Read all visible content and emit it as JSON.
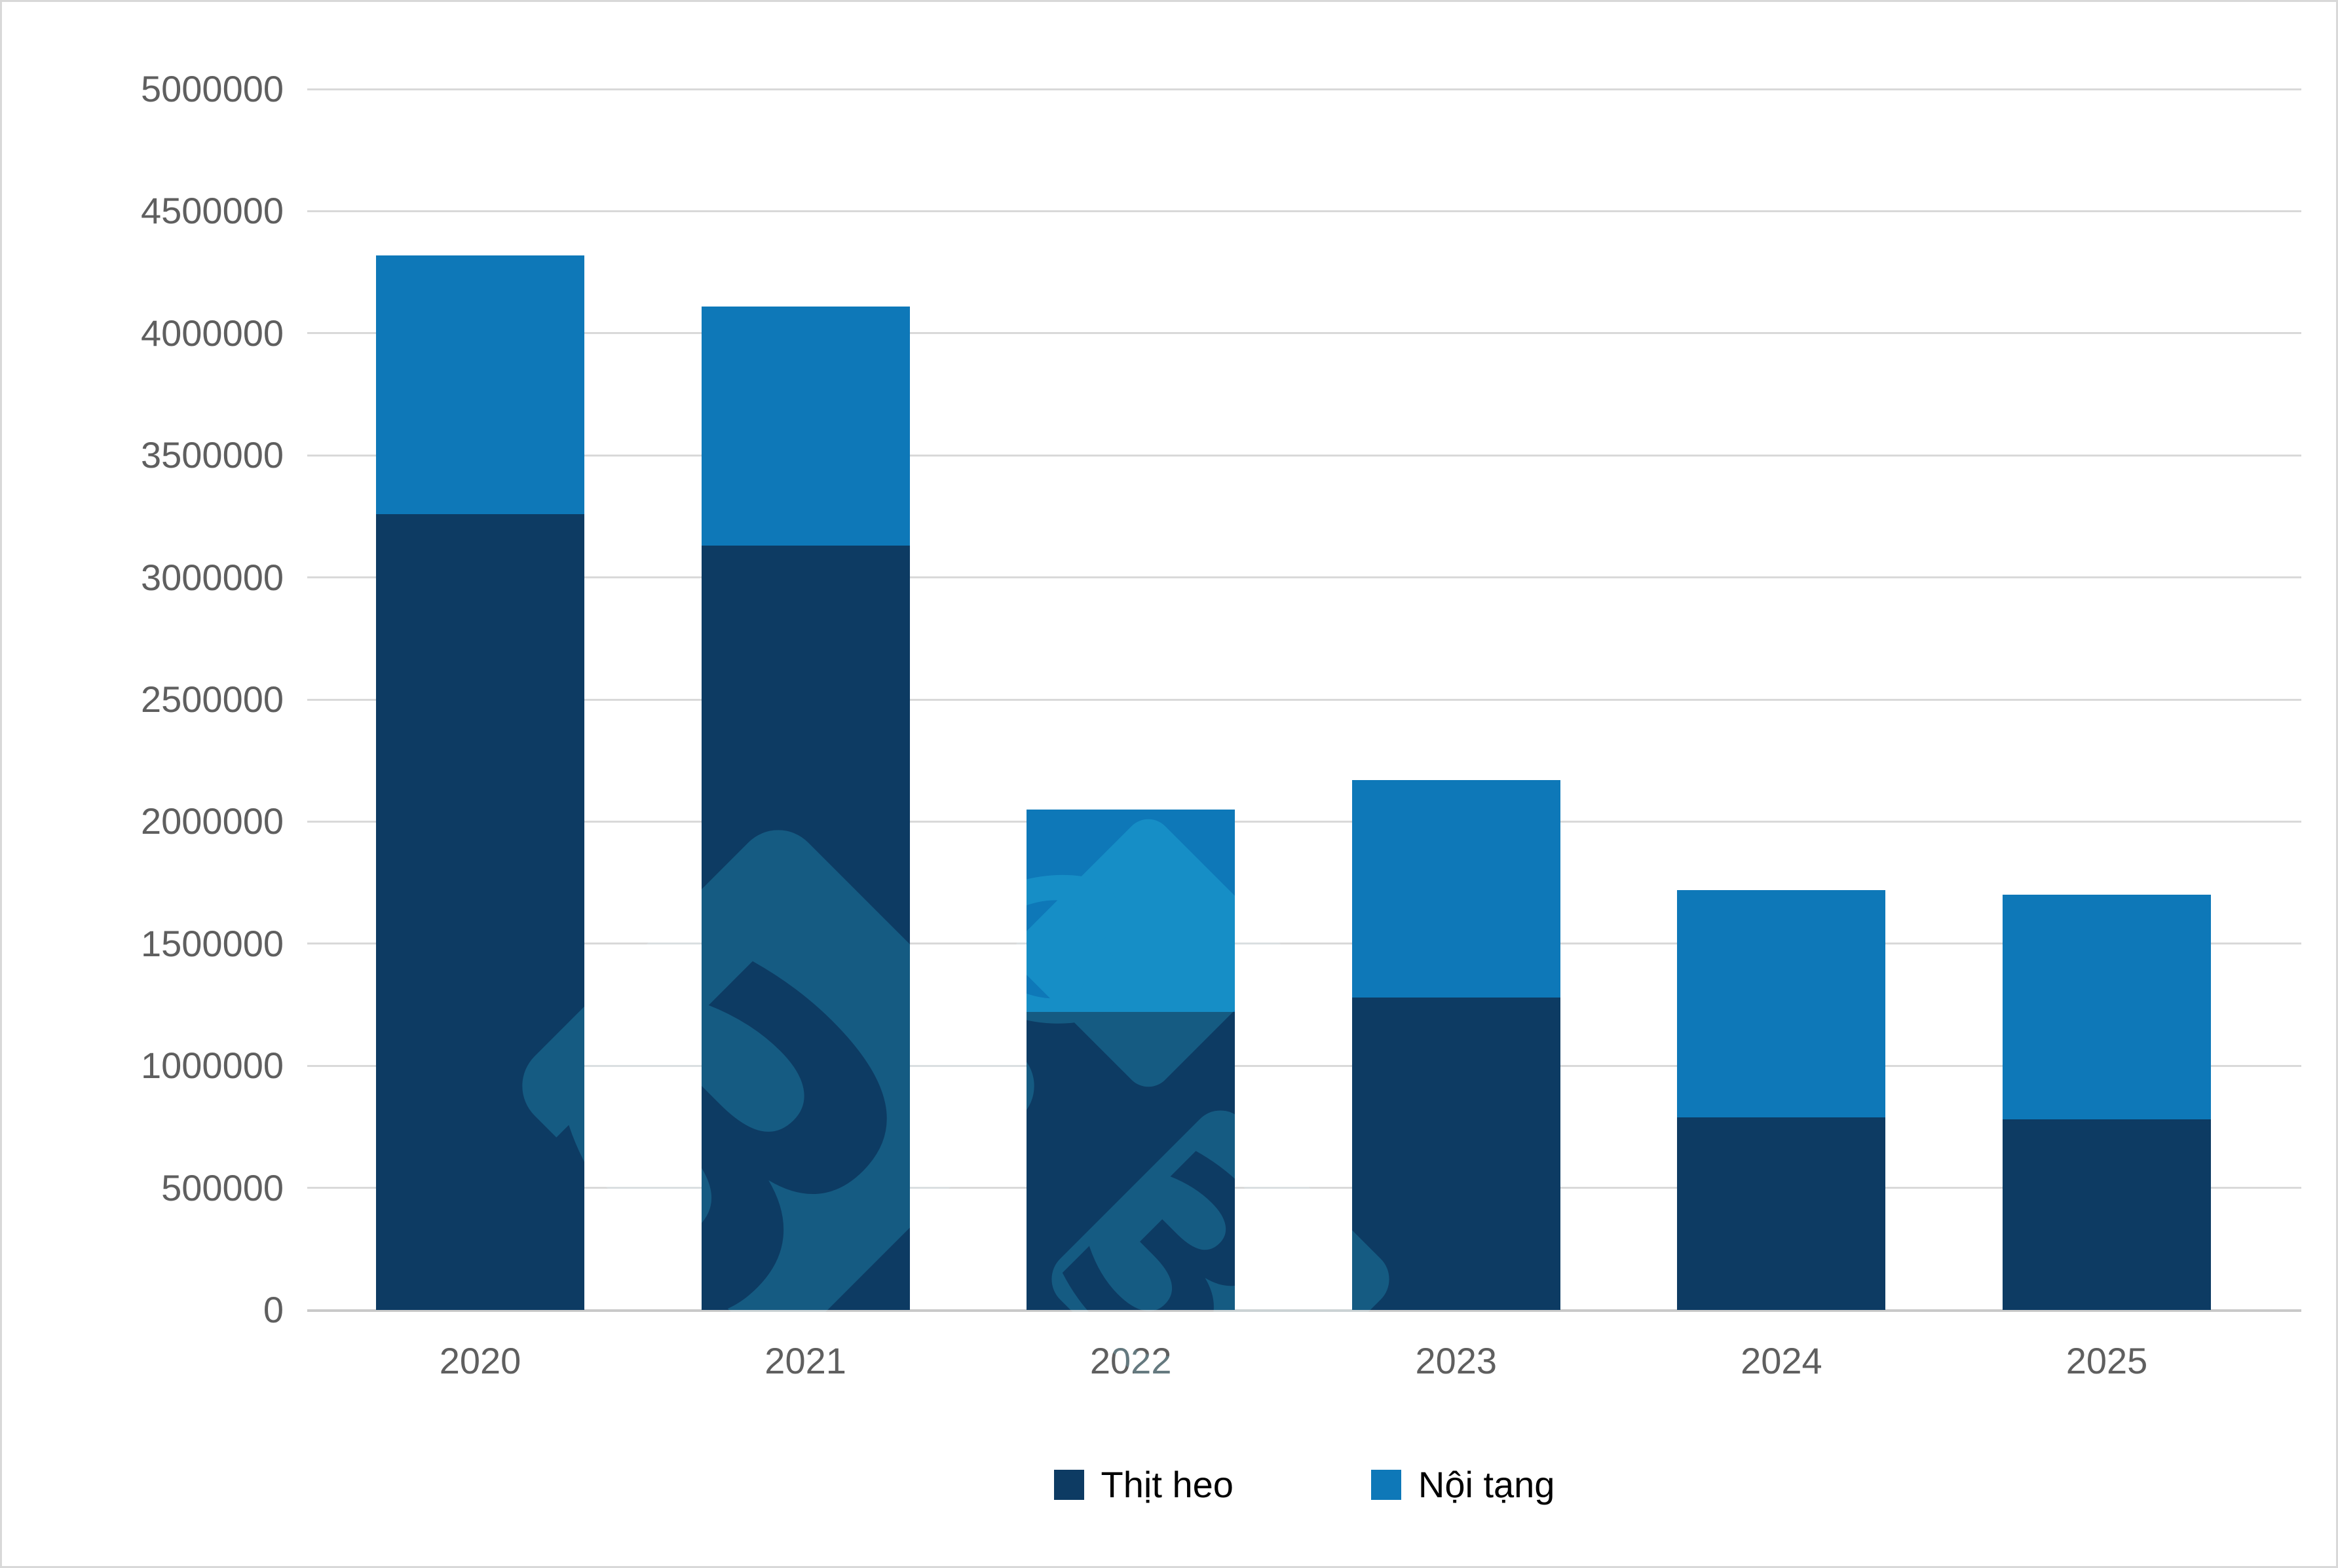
{
  "chart_data": {
    "type": "bar",
    "stacked": true,
    "title": "",
    "categories": [
      "2020",
      "2021",
      "2022",
      "2023",
      "2024",
      "2025"
    ],
    "series": [
      {
        "name": "Thịt heo",
        "color": "#0d3b63",
        "values": [
          3260000,
          3130000,
          1220000,
          1280000,
          790000,
          780000
        ]
      },
      {
        "name": "Nội tạng",
        "color": "#0e78b8",
        "values": [
          1060000,
          980000,
          830000,
          890000,
          930000,
          920000
        ]
      }
    ],
    "totals": [
      4320000,
      4110000,
      2050000,
      2170000,
      1720000,
      1700000
    ],
    "xlabel": "",
    "ylabel": "",
    "ylim": [
      0,
      5000000
    ],
    "ytick_step": 500000,
    "grid": true,
    "legend_position": "bottom"
  },
  "axis": {
    "yticks": [
      "5000000",
      "4500000",
      "4000000",
      "3500000",
      "3000000",
      "2500000",
      "2000000",
      "1500000",
      "1000000",
      "500000",
      "0"
    ],
    "xticks": [
      "2020",
      "2021",
      "2022",
      "2023",
      "2024",
      "2025"
    ]
  },
  "legend": {
    "items": [
      {
        "label": "Thịt heo",
        "color": "#0d3b63"
      },
      {
        "label": "Nội tạng",
        "color": "#0e78b8"
      }
    ]
  },
  "watermark": {
    "glyph": "3"
  },
  "colors": {
    "series_dark": "#0d3b63",
    "series_light": "#0e78b8",
    "grid": "#d9d9d9",
    "axis_line": "#c9c9c9",
    "tick_text": "#5f5f5f",
    "legend_text": "#000000",
    "frame": "#d8d8d8",
    "background": "#ffffff",
    "watermark_screen": "#082a33"
  }
}
